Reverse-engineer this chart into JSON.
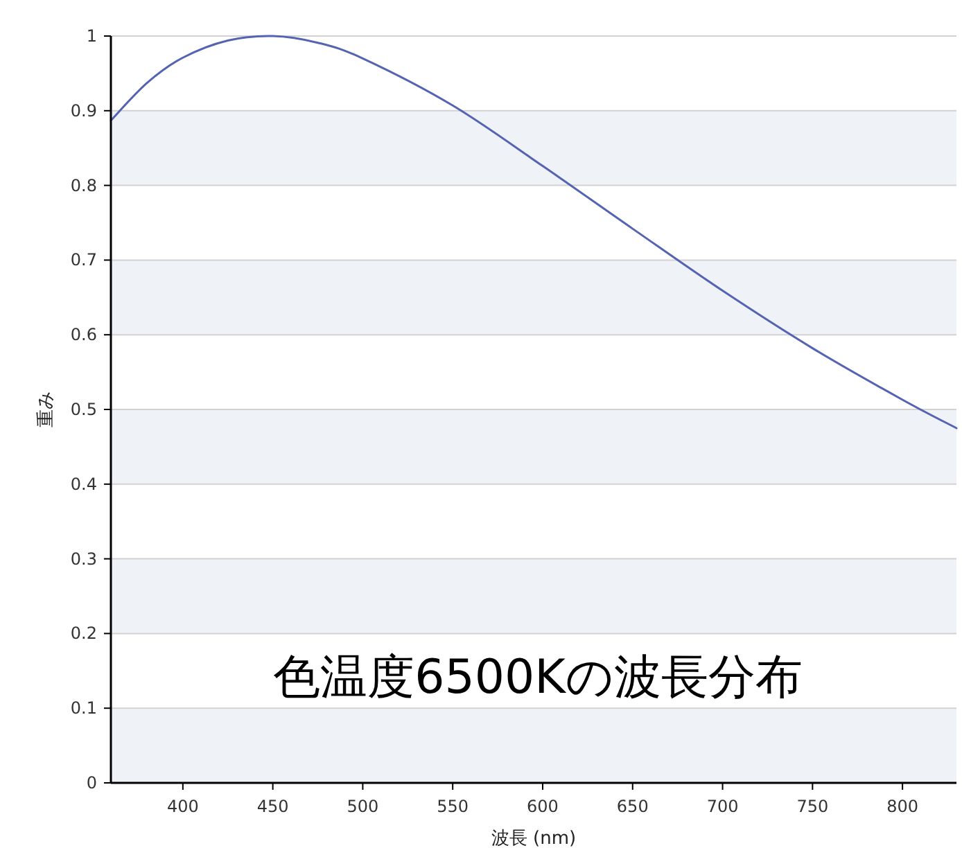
{
  "chart_data": {
    "type": "line",
    "title": "色温度6500Kの波長分布",
    "xlabel": "波長 (nm)",
    "ylabel": "重み",
    "series": [
      {
        "color": "#5563b3",
        "x": [
          360,
          380,
          400,
          425,
          450,
          475,
          500,
          550,
          600,
          650,
          700,
          750,
          800,
          830
        ],
        "values": [
          0.887,
          0.937,
          0.971,
          0.994,
          1.0,
          0.991,
          0.97,
          0.907,
          0.826,
          0.742,
          0.659,
          0.582,
          0.513,
          0.475
        ]
      }
    ],
    "xlim": [
      360,
      830
    ],
    "xticks": [
      400,
      450,
      500,
      550,
      600,
      650,
      700,
      750,
      800
    ],
    "ylim": [
      0,
      1
    ],
    "yticks": [
      0,
      0.1,
      0.2,
      0.3,
      0.4,
      0.5,
      0.6,
      0.7,
      0.8,
      0.9,
      1
    ],
    "grid": "y",
    "marker": "none",
    "line_style": "solid"
  }
}
